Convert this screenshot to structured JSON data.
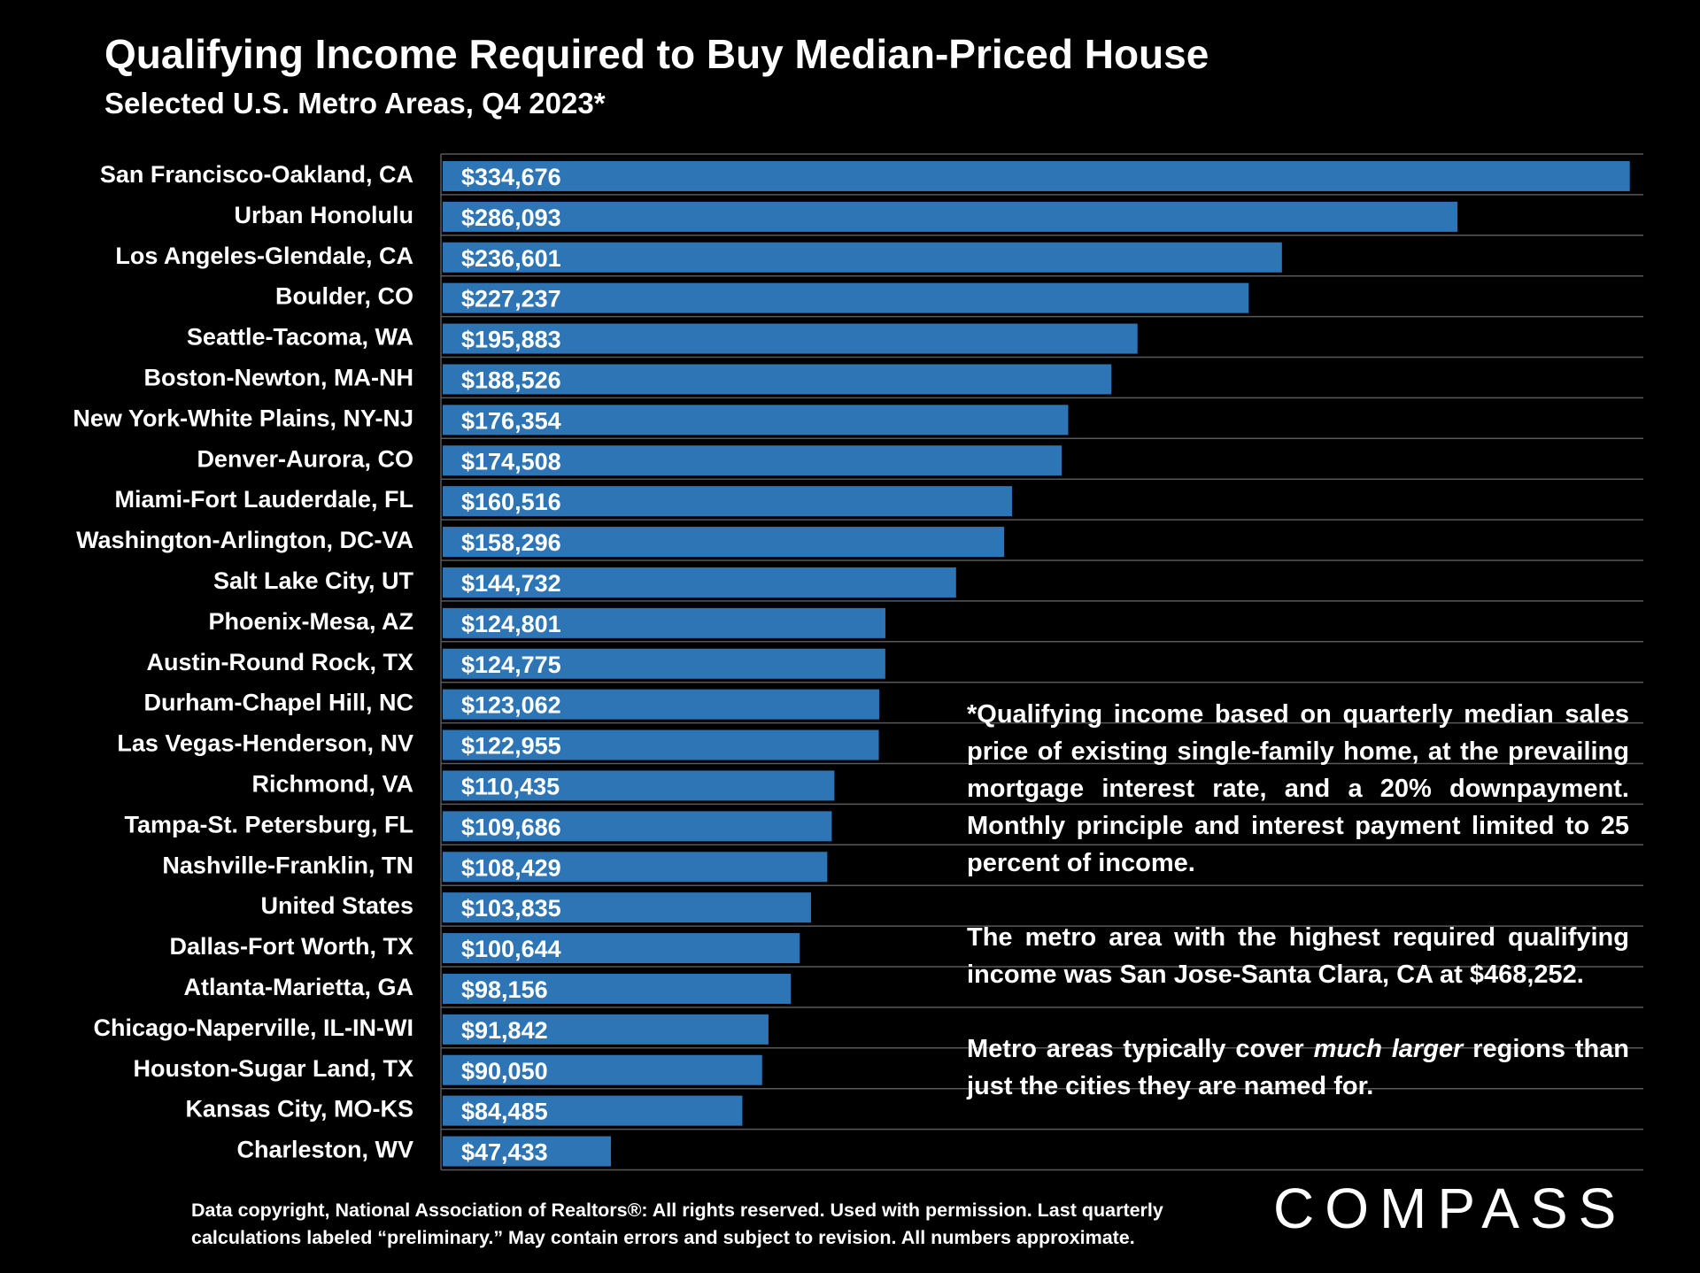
{
  "chart_data": {
    "type": "bar",
    "orientation": "horizontal",
    "title": "Qualifying Income Required to Buy Median-Priced House",
    "subtitle": "Selected U.S. Metro Areas, Q4 2023*",
    "categories": [
      "San Francisco-Oakland, CA",
      "Urban Honolulu",
      "Los Angeles-Glendale, CA",
      "Boulder, CO",
      "Seattle-Tacoma, WA",
      "Boston-Newton, MA-NH",
      "New York-White Plains, NY-NJ",
      "Denver-Aurora, CO",
      "Miami-Fort Lauderdale, FL",
      "Washington-Arlington, DC-VA",
      "Salt Lake City, UT",
      "Phoenix-Mesa, AZ",
      "Austin-Round Rock, TX",
      "Durham-Chapel Hill, NC",
      "Las Vegas-Henderson, NV",
      "Richmond, VA",
      "Tampa-St. Petersburg, FL",
      "Nashville-Franklin, TN",
      "United States",
      "Dallas-Fort Worth, TX",
      "Atlanta-Marietta, GA",
      "Chicago-Naperville, IL-IN-WI",
      "Houston-Sugar Land, TX",
      "Kansas City, MO-KS",
      "Charleston, WV"
    ],
    "values": [
      334676,
      286093,
      236601,
      227237,
      195883,
      188526,
      176354,
      174508,
      160516,
      158296,
      144732,
      124801,
      124775,
      123062,
      122955,
      110435,
      109686,
      108429,
      103835,
      100644,
      98156,
      91842,
      90050,
      84485,
      47433
    ],
    "value_labels": [
      "$334,676",
      "$286,093",
      "$236,601",
      "$227,237",
      "$195,883",
      "$188,526",
      "$176,354",
      "$174,508",
      "$160,516",
      "$158,296",
      "$144,732",
      "$124,801",
      "$124,775",
      "$123,062",
      "$122,955",
      "$110,435",
      "$109,686",
      "$108,429",
      "$103,835",
      "$100,644",
      "$98,156",
      "$91,842",
      "$90,050",
      "$84,485",
      "$47,433"
    ],
    "bar_color": "#2e75b6",
    "gridline_color": "#595959",
    "xlim": [
      0,
      335000
    ],
    "grid": true,
    "legend": "none"
  },
  "notes": {
    "p1": "*Qualifying income based on quarterly median sales price of existing single-family home, at the prevailing mortgage interest rate, and a 20% downpayment. Monthly principle and interest payment limited to 25 percent of income.",
    "p2": "The metro area with the highest required qualifying income was San Jose-Santa Clara, CA at $468,252.",
    "p3_before": "Metro areas typically cover ",
    "p3_emphasis": "much larger",
    "p3_after": " regions than just the cities they are named for."
  },
  "footer": {
    "line1": "Data copyright, National Association of Realtors®: All rights reserved. Used with permission. Last quarterly",
    "line2": "calculations labeled “preliminary.” May contain errors and subject to revision. All numbers approximate."
  },
  "logo": {
    "text": "COMPASS"
  }
}
